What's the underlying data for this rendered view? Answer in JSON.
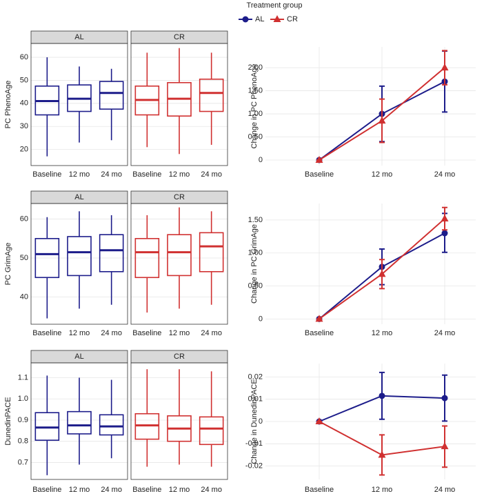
{
  "legend": {
    "title": "Treatment group"
  },
  "chart_data": [
    {
      "type": "box",
      "ylabel": "PC PhenoAge",
      "categories": [
        "Baseline",
        "12 mo",
        "24 mo"
      ],
      "ylim": [
        13,
        66
      ],
      "yticks": [
        20,
        30,
        40,
        50,
        60
      ],
      "panels": [
        {
          "name": "AL",
          "color": "#1c1c8a",
          "whisker_low": [
            17,
            23,
            24
          ],
          "q1": [
            35,
            36.5,
            37.5
          ],
          "median": [
            41,
            42,
            44.5
          ],
          "q3": [
            47.5,
            48,
            49.5
          ],
          "whisker_high": [
            60,
            56,
            55
          ]
        },
        {
          "name": "CR",
          "color": "#d03030",
          "whisker_low": [
            21,
            18,
            22
          ],
          "q1": [
            35,
            34.5,
            36.5
          ],
          "median": [
            41.5,
            42,
            44.5
          ],
          "q3": [
            47.5,
            49,
            50.5
          ],
          "whisker_high": [
            62,
            64,
            62
          ]
        }
      ]
    },
    {
      "type": "line",
      "ylabel": "Change in PC PhenoAge",
      "categories": [
        "Baseline",
        "12 mo",
        "24 mo"
      ],
      "ylim": [
        -0.12,
        2.45
      ],
      "yticks": [
        0,
        {
          "value": 0.5,
          "label": "0.50"
        },
        {
          "value": 1,
          "label": "1.00"
        },
        {
          "value": 1.5,
          "label": "1.50"
        },
        {
          "value": 2,
          "label": "2.00"
        }
      ],
      "series": [
        {
          "name": "AL",
          "color": "#1c1c8a",
          "marker": "circle",
          "values": [
            0,
            1.0,
            1.7
          ],
          "lower": [
            0,
            0.4,
            1.04
          ],
          "upper": [
            0,
            1.6,
            2.36
          ]
        },
        {
          "name": "CR",
          "color": "#d03030",
          "marker": "triangle",
          "values": [
            0,
            0.85,
            2.0
          ],
          "lower": [
            0,
            0.38,
            1.63
          ],
          "upper": [
            0,
            1.32,
            2.37
          ]
        }
      ]
    },
    {
      "type": "box",
      "ylabel": "PC GrimAge",
      "categories": [
        "Baseline",
        "12 mo",
        "24 mo"
      ],
      "ylim": [
        33,
        64
      ],
      "yticks": [
        40,
        50,
        60
      ],
      "panels": [
        {
          "name": "AL",
          "color": "#1c1c8a",
          "whisker_low": [
            34.5,
            37,
            38
          ],
          "q1": [
            45,
            45.5,
            46.5
          ],
          "median": [
            51,
            51.5,
            52
          ],
          "q3": [
            55,
            55.5,
            56
          ],
          "whisker_high": [
            60.5,
            62,
            61
          ]
        },
        {
          "name": "CR",
          "color": "#d03030",
          "whisker_low": [
            36,
            37,
            38
          ],
          "q1": [
            45,
            45.5,
            46.5
          ],
          "median": [
            51.5,
            51.5,
            53
          ],
          "q3": [
            55,
            56,
            56.5
          ],
          "whisker_high": [
            61,
            63,
            62
          ]
        }
      ]
    },
    {
      "type": "line",
      "ylabel": "Change in PC GrimAge",
      "categories": [
        "Baseline",
        "12 mo",
        "24 mo"
      ],
      "ylim": [
        -0.08,
        1.75
      ],
      "yticks": [
        0,
        {
          "value": 0.5,
          "label": "0.50"
        },
        {
          "value": 1,
          "label": "1.00"
        },
        {
          "value": 1.5,
          "label": "1.50"
        }
      ],
      "series": [
        {
          "name": "AL",
          "color": "#1c1c8a",
          "marker": "circle",
          "values": [
            0,
            0.79,
            1.3
          ],
          "lower": [
            0,
            0.52,
            1.01
          ],
          "upper": [
            0,
            1.06,
            1.6
          ]
        },
        {
          "name": "CR",
          "color": "#d03030",
          "marker": "triangle",
          "values": [
            0,
            0.68,
            1.52
          ],
          "lower": [
            0,
            0.46,
            1.35
          ],
          "upper": [
            0,
            0.9,
            1.69
          ]
        }
      ]
    },
    {
      "type": "box",
      "ylabel": "DunedinPACE",
      "categories": [
        "Baseline",
        "12 mo",
        "24 mo"
      ],
      "ylim": [
        0.62,
        1.17
      ],
      "yticks": [
        0.7,
        0.8,
        0.9,
        {
          "value": 1,
          "label": "1.0"
        },
        1.1
      ],
      "panels": [
        {
          "name": "AL",
          "color": "#1c1c8a",
          "whisker_low": [
            0.64,
            0.69,
            0.72
          ],
          "q1": [
            0.805,
            0.835,
            0.83
          ],
          "median": [
            0.865,
            0.875,
            0.87
          ],
          "q3": [
            0.935,
            0.94,
            0.925
          ],
          "whisker_high": [
            1.11,
            1.1,
            1.09
          ]
        },
        {
          "name": "CR",
          "color": "#d03030",
          "whisker_low": [
            0.68,
            0.69,
            0.68
          ],
          "q1": [
            0.81,
            0.8,
            0.785
          ],
          "median": [
            0.875,
            0.86,
            0.86
          ],
          "q3": [
            0.93,
            0.92,
            0.915
          ],
          "whisker_high": [
            1.14,
            1.14,
            1.13
          ]
        }
      ]
    },
    {
      "type": "line",
      "ylabel": "Change in DunedinPACE",
      "categories": [
        "Baseline",
        "12 mo",
        "24 mo"
      ],
      "ylim": [
        -0.026,
        0.026
      ],
      "yticks": [
        -0.02,
        -0.01,
        0,
        0.01,
        0.02
      ],
      "series": [
        {
          "name": "AL",
          "color": "#1c1c8a",
          "marker": "circle",
          "values": [
            0,
            0.0115,
            0.0105
          ],
          "lower": [
            0,
            0.001,
            0.0002
          ],
          "upper": [
            0,
            0.022,
            0.0208
          ]
        },
        {
          "name": "CR",
          "color": "#d03030",
          "marker": "triangle",
          "values": [
            0,
            -0.015,
            -0.0112
          ],
          "lower": [
            0,
            -0.024,
            -0.0205
          ],
          "upper": [
            0,
            -0.006,
            -0.002
          ]
        }
      ]
    }
  ]
}
